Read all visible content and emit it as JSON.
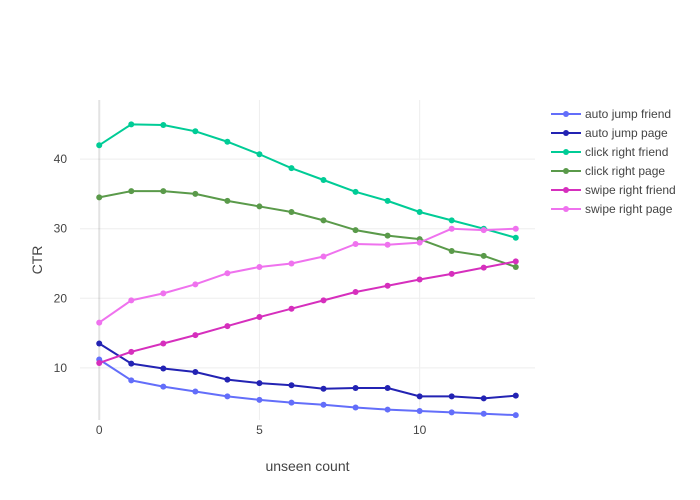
{
  "chart_data": {
    "type": "line",
    "title": "",
    "xlabel": "unseen count",
    "ylabel": "CTR",
    "x": [
      0,
      1,
      2,
      3,
      4,
      5,
      6,
      7,
      8,
      9,
      10,
      11,
      12,
      13
    ],
    "xlim": [
      -0.6,
      13.6
    ],
    "ylim": [
      2.5,
      48.5
    ],
    "xticks": [
      0,
      5,
      10
    ],
    "yticks": [
      10,
      20,
      30,
      40
    ],
    "grid": true,
    "legend_position": "right",
    "series": [
      {
        "name": "auto jump friend",
        "color": "#636efa",
        "values": [
          11.2,
          8.2,
          7.3,
          6.6,
          5.9,
          5.4,
          5.0,
          4.7,
          4.3,
          4.0,
          3.8,
          3.6,
          3.4,
          3.2
        ]
      },
      {
        "name": "auto jump page",
        "color": "#2323b3",
        "values": [
          13.5,
          10.6,
          9.9,
          9.4,
          8.3,
          7.8,
          7.5,
          7.0,
          7.1,
          7.1,
          5.9,
          5.9,
          5.6,
          6.0
        ]
      },
      {
        "name": "click right friend",
        "color": "#00cc96",
        "values": [
          42.0,
          45.0,
          44.9,
          44.0,
          42.5,
          40.7,
          38.7,
          37.0,
          35.3,
          34.0,
          32.4,
          31.2,
          30.0,
          28.7
        ]
      },
      {
        "name": "click right page",
        "color": "#5a9a4a",
        "values": [
          34.5,
          35.4,
          35.4,
          35.0,
          34.0,
          33.2,
          32.4,
          31.2,
          29.8,
          29.0,
          28.5,
          26.8,
          26.1,
          24.5
        ]
      },
      {
        "name": "swipe right friend",
        "color": "#d62fbd",
        "values": [
          10.7,
          12.3,
          13.5,
          14.7,
          16.0,
          17.3,
          18.5,
          19.7,
          20.9,
          21.8,
          22.7,
          23.5,
          24.4,
          25.3
        ]
      },
      {
        "name": "swipe right page",
        "color": "#ef72ee",
        "values": [
          16.5,
          19.7,
          20.7,
          22.0,
          23.6,
          24.5,
          25.0,
          26.0,
          27.8,
          27.7,
          28.0,
          30.0,
          29.8,
          30.0
        ]
      }
    ]
  }
}
